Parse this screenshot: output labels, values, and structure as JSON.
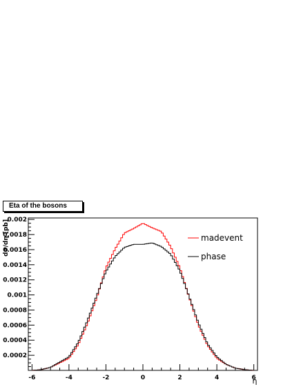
{
  "chart_data": {
    "type": "line",
    "title": "Eta of the bosons",
    "xlabel": "η",
    "ylabel": "dσ/dη [pb]",
    "xlim": [
      -6.2,
      6.2
    ],
    "ylim": [
      0,
      0.00202
    ],
    "x_ticks": [
      -6,
      -4,
      -2,
      0,
      2,
      4,
      6
    ],
    "x_tick_labels": [
      "-6",
      "-4",
      "-2",
      "0",
      "2",
      "4",
      "6"
    ],
    "y_ticks": [
      0.0002,
      0.0004,
      0.0006,
      0.0008,
      0.001,
      0.0012,
      0.0014,
      0.0016,
      0.0018,
      0.002
    ],
    "y_tick_labels": [
      "0.0002",
      "0.0004",
      "0.0006",
      "0.0008",
      "0.001",
      "0.0012",
      "0.0014",
      "0.0016",
      "0.0018",
      "0.002"
    ],
    "grid": false,
    "legend_position": "top-right",
    "histogram_step": true,
    "x": [
      -6.0,
      -5.5,
      -5.0,
      -4.5,
      -4.0,
      -3.5,
      -3.0,
      -2.5,
      -2.0,
      -1.5,
      -1.0,
      -0.5,
      0.0,
      0.5,
      1.0,
      1.5,
      2.0,
      2.5,
      3.0,
      3.5,
      4.0,
      4.5,
      5.0,
      5.5,
      6.0
    ],
    "series": [
      {
        "name": "madevent",
        "color": "#ff0000",
        "values": [
          0.0,
          1e-05,
          4e-05,
          0.0001,
          0.00016,
          0.00034,
          0.00062,
          0.00096,
          0.00136,
          0.00161,
          0.00182,
          0.00188,
          0.00195,
          0.00189,
          0.00184,
          0.00164,
          0.00136,
          0.00097,
          0.0006,
          0.00033,
          0.00016,
          8e-05,
          3e-05,
          1e-05,
          0.0
        ]
      },
      {
        "name": "phase",
        "color": "#000000",
        "values": [
          0.0,
          1e-05,
          4e-05,
          0.00011,
          0.00018,
          0.00037,
          0.00066,
          0.00099,
          0.00131,
          0.00151,
          0.00163,
          0.00167,
          0.00167,
          0.00169,
          0.00164,
          0.00154,
          0.00132,
          0.00098,
          0.00063,
          0.00035,
          0.00018,
          8e-05,
          3e-05,
          1e-05,
          0.0
        ]
      }
    ]
  }
}
